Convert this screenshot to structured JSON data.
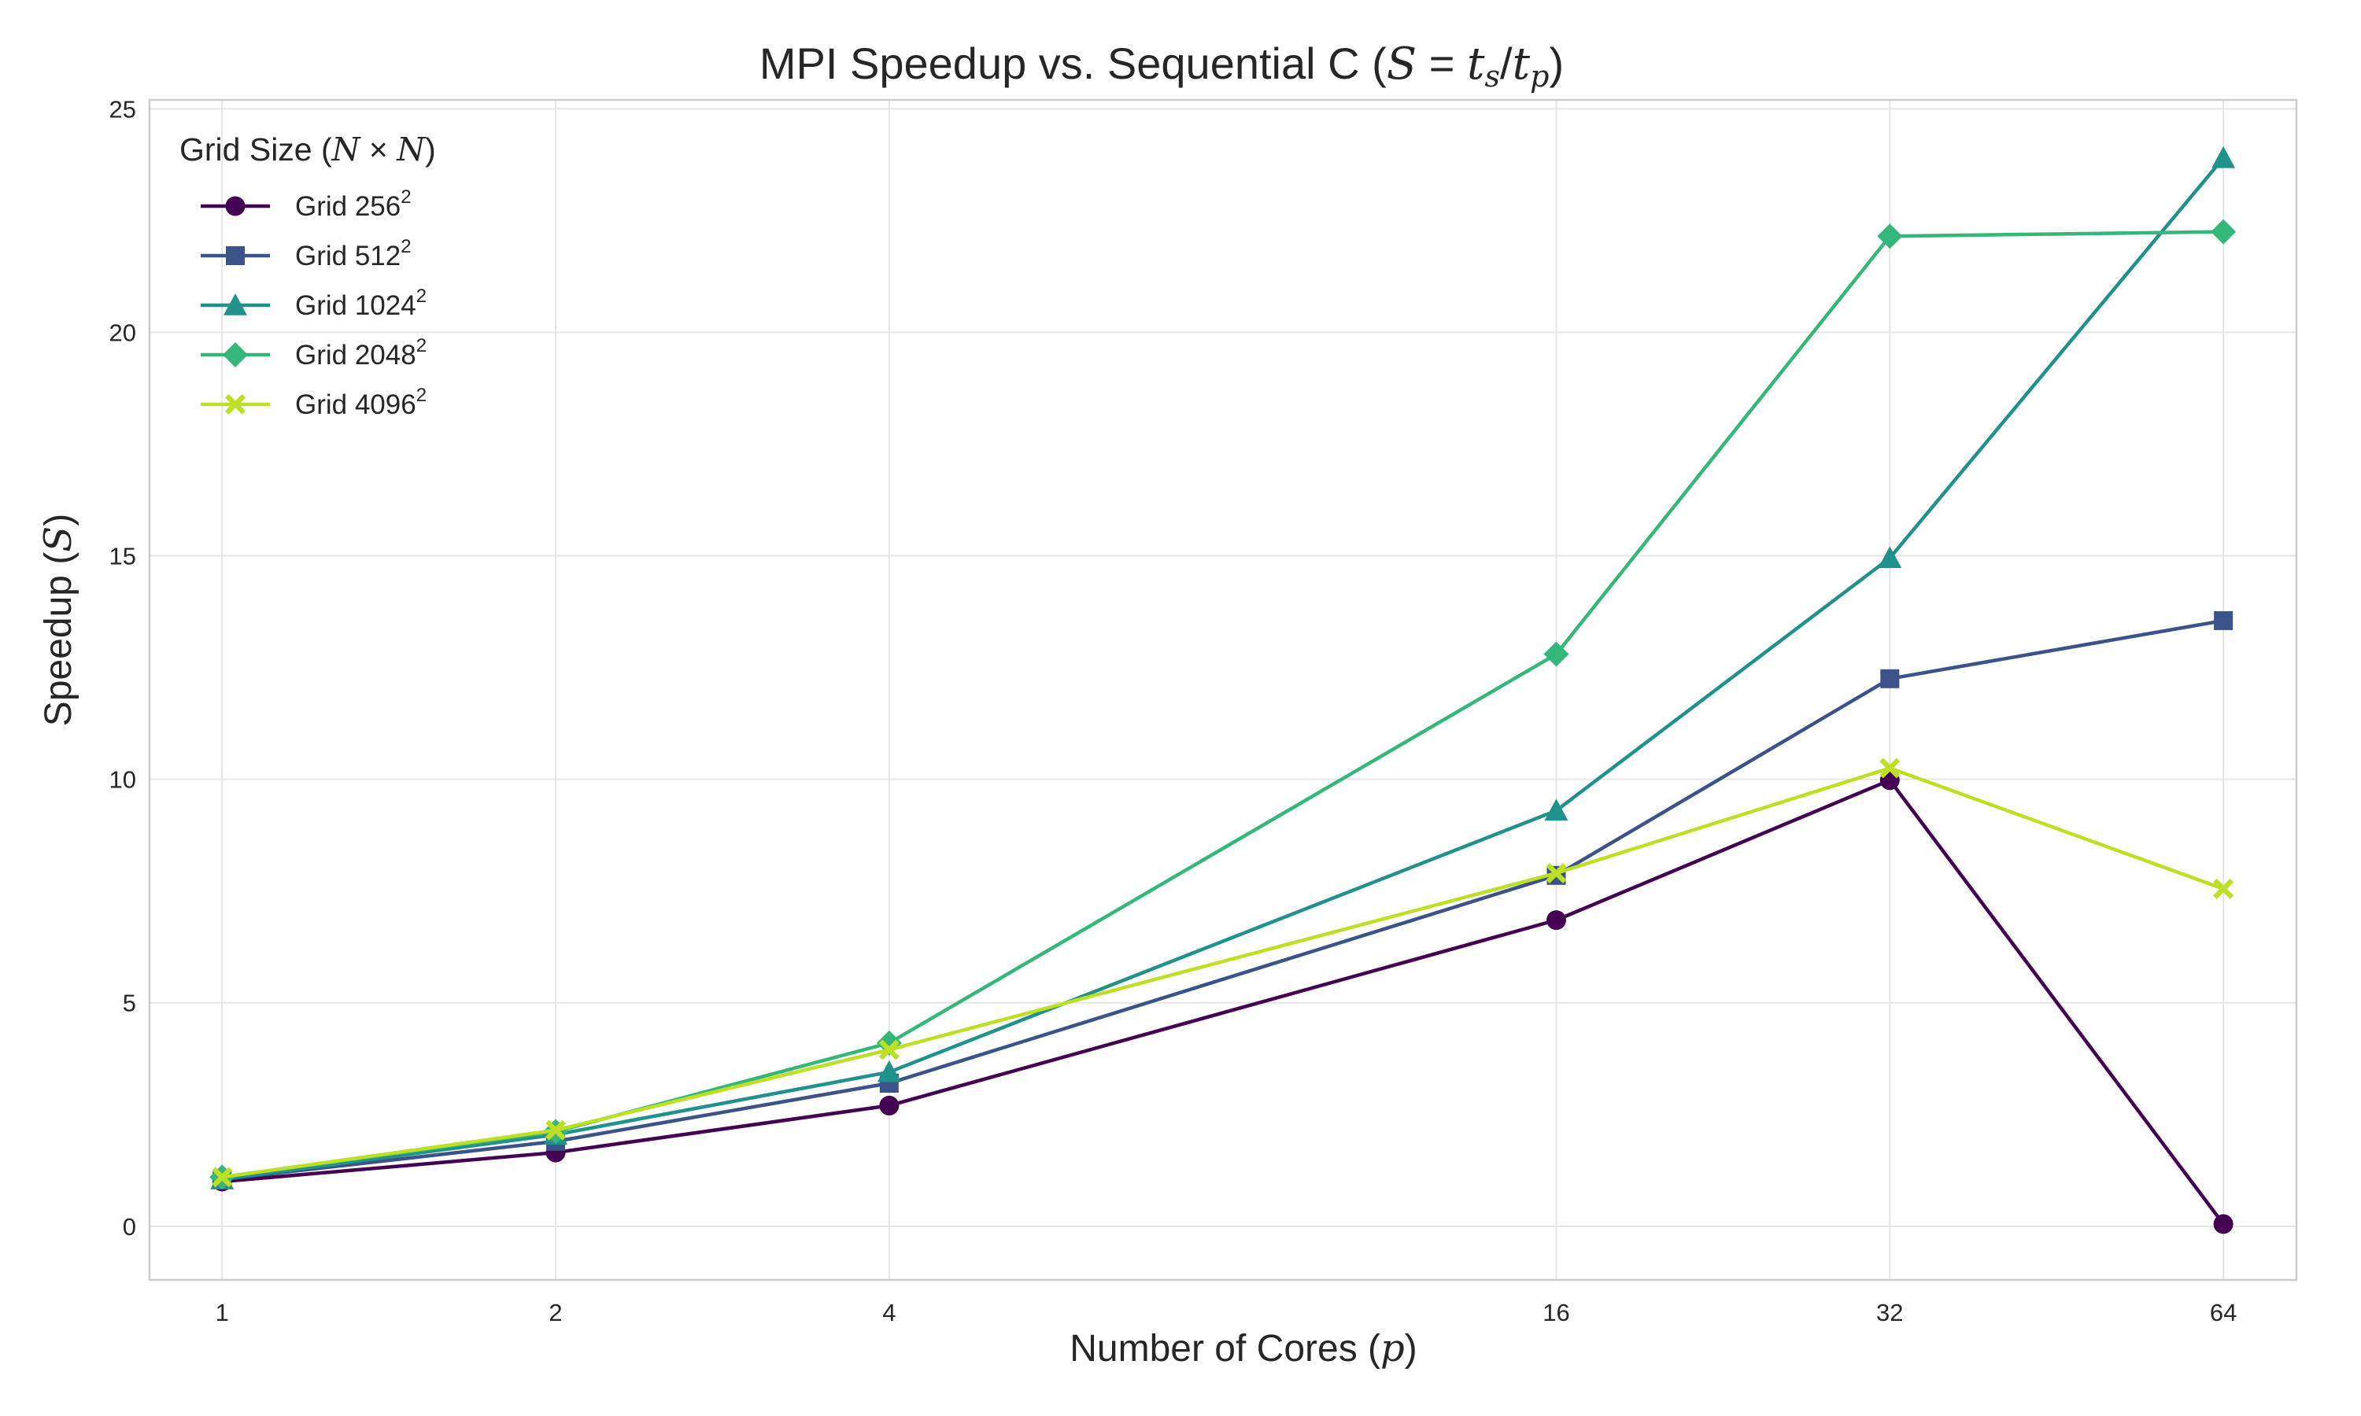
{
  "chart_data": {
    "type": "line",
    "title": "MPI Speedup vs. Sequential C (S = t_s/t_p)",
    "title_parts": {
      "prefix": "MPI Speedup vs. Sequential C (",
      "S": "S",
      "eq": " = ",
      "t1": "t",
      "sub1": "s",
      "slash": "/",
      "t2": "t",
      "sub2": "p",
      "suffix": ")"
    },
    "xlabel": "Number of Cores (p)",
    "xlabel_parts": {
      "prefix": "Number of Cores (",
      "var": "p",
      "suffix": ")"
    },
    "ylabel": "Speedup (S)",
    "ylabel_parts": {
      "prefix": "Speedup (",
      "var": "S",
      "suffix": ")"
    },
    "x_scale": "log2",
    "x": [
      1,
      2,
      4,
      16,
      32,
      64
    ],
    "xticks": [
      "1",
      "2",
      "4",
      "16",
      "32",
      "64"
    ],
    "xlim": [
      0.86,
      74.5
    ],
    "ylim": [
      -1.2,
      25.2
    ],
    "yticks": [
      0,
      5,
      10,
      15,
      20,
      25
    ],
    "grid": true,
    "legend_placement": "top-left",
    "legend_title": "Grid Size (N × N)",
    "legend_title_parts": {
      "prefix": "Grid Size (",
      "a": "N",
      "times": " × ",
      "b": "N",
      "suffix": ")"
    },
    "series": [
      {
        "name": "Grid 256²",
        "name_base": "Grid 256",
        "name_sup": "2",
        "color": "#440154",
        "marker": "circle",
        "values": [
          1.0,
          1.65,
          2.7,
          6.85,
          9.98,
          0.05
        ]
      },
      {
        "name": "Grid 512²",
        "name_base": "Grid 512",
        "name_sup": "2",
        "color": "#3b528b",
        "marker": "square",
        "values": [
          1.05,
          1.9,
          3.2,
          7.85,
          12.25,
          13.55
        ]
      },
      {
        "name": "Grid 1024²",
        "name_base": "Grid 1024",
        "name_sup": "2",
        "color": "#21918c",
        "marker": "triangle",
        "values": [
          1.05,
          2.05,
          3.45,
          9.3,
          14.95,
          23.9
        ]
      },
      {
        "name": "Grid 2048²",
        "name_base": "Grid 2048",
        "name_sup": "2",
        "color": "#35b779",
        "marker": "diamond",
        "values": [
          1.1,
          2.12,
          4.1,
          12.8,
          22.15,
          22.25
        ]
      },
      {
        "name": "Grid 4096²",
        "name_base": "Grid 4096",
        "name_sup": "2",
        "color": "#bddf26",
        "marker": "x",
        "values": [
          1.1,
          2.15,
          3.95,
          7.9,
          10.25,
          7.55
        ]
      }
    ]
  }
}
